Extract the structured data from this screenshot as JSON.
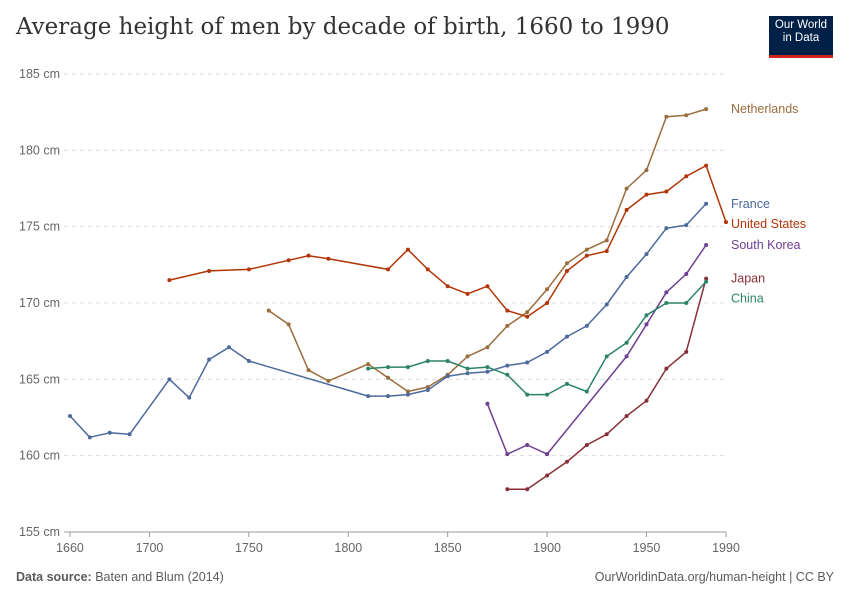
{
  "header": {
    "title": "Average height of men by decade of birth, 1660 to 1990",
    "logo_line1": "Our World",
    "logo_line2": "in Data"
  },
  "footer": {
    "source_label": "Data source:",
    "source_text": "Baten and Blum (2014)",
    "url_text": "OurWorldinData.org/human-height",
    "license_text": "CC BY"
  },
  "chart_data": {
    "type": "line",
    "title": "Average height of men by decade of birth, 1660 to 1990",
    "xlabel": "",
    "ylabel": "",
    "xlim": [
      1657,
      1990
    ],
    "ylim": [
      155,
      185
    ],
    "x_ticks": [
      1660,
      1700,
      1750,
      1800,
      1850,
      1900,
      1950,
      1990
    ],
    "y_ticks": [
      {
        "value": 155,
        "label": "155 cm"
      },
      {
        "value": 160,
        "label": "160 cm"
      },
      {
        "value": 165,
        "label": "165 cm"
      },
      {
        "value": 170,
        "label": "170 cm"
      },
      {
        "value": 175,
        "label": "175 cm"
      },
      {
        "value": 180,
        "label": "180 cm"
      },
      {
        "value": 185,
        "label": "185 cm"
      }
    ],
    "grid": "horizontal dashed",
    "legend": "right (line-end labels)",
    "series": [
      {
        "name": "Netherlands",
        "color": "#9a6d3d",
        "points": [
          [
            1760,
            169.5
          ],
          [
            1770,
            168.6
          ],
          [
            1780,
            165.6
          ],
          [
            1790,
            164.9
          ],
          [
            1810,
            166.0
          ],
          [
            1820,
            165.1
          ],
          [
            1830,
            164.2
          ],
          [
            1840,
            164.5
          ],
          [
            1850,
            165.3
          ],
          [
            1860,
            166.5
          ],
          [
            1870,
            167.1
          ],
          [
            1880,
            168.5
          ],
          [
            1890,
            169.4
          ],
          [
            1900,
            170.9
          ],
          [
            1910,
            172.6
          ],
          [
            1920,
            173.5
          ],
          [
            1930,
            174.1
          ],
          [
            1940,
            177.5
          ],
          [
            1950,
            178.7
          ],
          [
            1960,
            182.2
          ],
          [
            1970,
            182.3
          ],
          [
            1980,
            182.7
          ]
        ]
      },
      {
        "name": "United States",
        "color": "#b13507",
        "points": [
          [
            1710,
            171.5
          ],
          [
            1730,
            172.1
          ],
          [
            1750,
            172.2
          ],
          [
            1770,
            172.8
          ],
          [
            1780,
            173.1
          ],
          [
            1790,
            172.9
          ],
          [
            1820,
            172.2
          ],
          [
            1830,
            173.5
          ],
          [
            1840,
            172.2
          ],
          [
            1850,
            171.1
          ],
          [
            1860,
            170.6
          ],
          [
            1870,
            171.1
          ],
          [
            1880,
            169.5
          ],
          [
            1890,
            169.1
          ],
          [
            1900,
            170.0
          ],
          [
            1910,
            172.1
          ],
          [
            1920,
            173.1
          ],
          [
            1930,
            173.4
          ],
          [
            1940,
            176.1
          ],
          [
            1950,
            177.1
          ],
          [
            1960,
            177.3
          ],
          [
            1970,
            178.3
          ],
          [
            1980,
            179.0
          ],
          [
            1990,
            175.3
          ]
        ]
      },
      {
        "name": "France",
        "color": "#4c6a9c",
        "points": [
          [
            1660,
            162.6
          ],
          [
            1670,
            161.2
          ],
          [
            1680,
            161.5
          ],
          [
            1690,
            161.4
          ],
          [
            1710,
            165.0
          ],
          [
            1720,
            163.8
          ],
          [
            1730,
            166.3
          ],
          [
            1740,
            167.1
          ],
          [
            1750,
            166.2
          ],
          [
            1810,
            163.9
          ],
          [
            1820,
            163.9
          ],
          [
            1830,
            164.0
          ],
          [
            1840,
            164.3
          ],
          [
            1850,
            165.2
          ],
          [
            1860,
            165.4
          ],
          [
            1870,
            165.5
          ],
          [
            1880,
            165.9
          ],
          [
            1890,
            166.1
          ],
          [
            1900,
            166.8
          ],
          [
            1910,
            167.8
          ],
          [
            1920,
            168.5
          ],
          [
            1930,
            169.9
          ],
          [
            1940,
            171.7
          ],
          [
            1950,
            173.2
          ],
          [
            1960,
            174.9
          ],
          [
            1970,
            175.1
          ],
          [
            1980,
            176.5
          ]
        ]
      },
      {
        "name": "South Korea",
        "color": "#6d3e91",
        "points": [
          [
            1870,
            163.4
          ],
          [
            1880,
            160.1
          ],
          [
            1890,
            160.7
          ],
          [
            1900,
            160.1
          ],
          [
            1940,
            166.5
          ],
          [
            1950,
            168.6
          ],
          [
            1960,
            170.7
          ],
          [
            1970,
            171.9
          ],
          [
            1980,
            173.8
          ]
        ]
      },
      {
        "name": "Japan",
        "color": "#883039",
        "points": [
          [
            1880,
            157.8
          ],
          [
            1890,
            157.8
          ],
          [
            1900,
            158.7
          ],
          [
            1910,
            159.6
          ],
          [
            1920,
            160.7
          ],
          [
            1930,
            161.4
          ],
          [
            1940,
            162.6
          ],
          [
            1950,
            163.6
          ],
          [
            1960,
            165.7
          ],
          [
            1970,
            166.8
          ],
          [
            1980,
            171.6
          ]
        ]
      },
      {
        "name": "China",
        "color": "#2c8465",
        "points": [
          [
            1810,
            165.7
          ],
          [
            1820,
            165.8
          ],
          [
            1830,
            165.8
          ],
          [
            1840,
            166.2
          ],
          [
            1850,
            166.2
          ],
          [
            1860,
            165.7
          ],
          [
            1870,
            165.8
          ],
          [
            1880,
            165.3
          ],
          [
            1890,
            164.0
          ],
          [
            1900,
            164.0
          ],
          [
            1910,
            164.7
          ],
          [
            1920,
            164.2
          ],
          [
            1930,
            166.5
          ],
          [
            1940,
            167.4
          ],
          [
            1950,
            169.2
          ],
          [
            1960,
            170.0
          ],
          [
            1970,
            170.0
          ],
          [
            1980,
            171.4
          ]
        ]
      }
    ]
  }
}
